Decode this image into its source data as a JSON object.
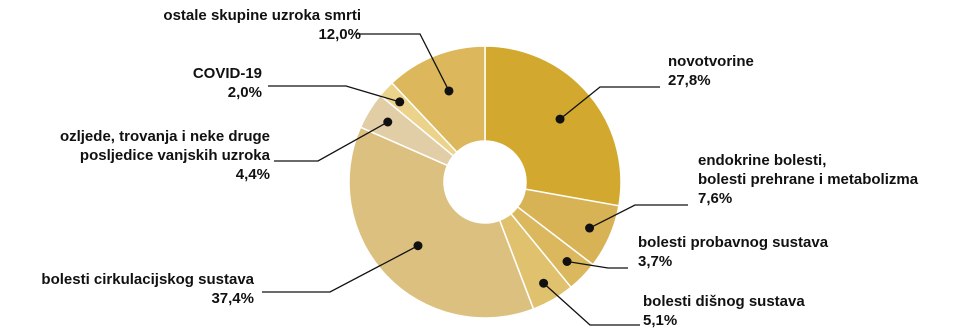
{
  "chart_data": {
    "type": "pie",
    "variant": "donut",
    "title": "",
    "start_angle_deg": 0,
    "direction": "clockwise",
    "slices": [
      {
        "label": [
          "novotvorine"
        ],
        "value_label": "27,8%",
        "value": 27.8,
        "color": "#d2a92e"
      },
      {
        "label": [
          "endokrine bolesti,",
          "bolesti prehrane i metabolizma"
        ],
        "value_label": "7,6%",
        "value": 7.6,
        "color": "#d7b355"
      },
      {
        "label": [
          "bolesti probavnog sustava"
        ],
        "value_label": "3,7%",
        "value": 3.7,
        "color": "#dbb85e"
      },
      {
        "label": [
          "bolesti dišnog sustava"
        ],
        "value_label": "5,1%",
        "value": 5.1,
        "color": "#e0c16d"
      },
      {
        "label": [
          "bolesti cirkulacijskog sustava"
        ],
        "value_label": "37,4%",
        "value": 37.4,
        "color": "#dcc07f"
      },
      {
        "label": [
          "ozljede, trovanja i neke druge",
          "posljedice vanjskih uzroka"
        ],
        "value_label": "4,4%",
        "value": 4.4,
        "color": "#e1cea6"
      },
      {
        "label": [
          "COVID-19"
        ],
        "value_label": "2,0%",
        "value": 2.0,
        "color": "#ecd38c"
      },
      {
        "label": [
          "ostale skupine uzroka smrti"
        ],
        "value_label": "12,0%",
        "value": 12.0,
        "color": "#dcb75c"
      }
    ]
  }
}
